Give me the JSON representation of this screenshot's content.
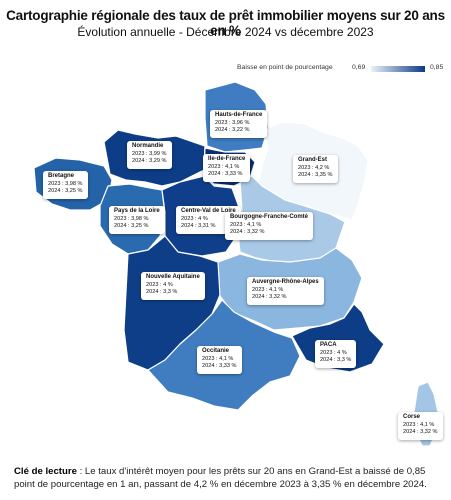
{
  "title": "Cartographie régionale des taux de prêt immobilier moyens sur 20 ans en %",
  "subtitle": "Évolution annuelle - Décembre 2024 vs décembre 2023",
  "legend": {
    "label": "Baisse en point de pourcentage",
    "min": "0,69",
    "max": "0,85",
    "color_low": "#e9f1fa",
    "color_high": "#0b3b85"
  },
  "regions": [
    {
      "id": "hauts-de-france",
      "name": "Hauts-de-France",
      "line2023": "2023 : 3,96 %",
      "line2024": "2024 : 3,22 %",
      "color": "#3f7cc2"
    },
    {
      "id": "normandie",
      "name": "Normandie",
      "line2023": "2023 : 3,99 %",
      "line2024": "2024 : 3,29 %",
      "color": "#0d3d86"
    },
    {
      "id": "ile-de-france",
      "name": "Ile-de-France",
      "line2023": "2023 : 4,1 %",
      "line2024": "2024 : 3,33 %",
      "color": "#0b2f70"
    },
    {
      "id": "grand-est",
      "name": "Grand-Est",
      "line2023": "2023 : 4,2 %",
      "line2024": "2024 : 3,35 %",
      "color": "#f2f7fc"
    },
    {
      "id": "bretagne",
      "name": "Bretagne",
      "line2023": "2023 : 3,98 %",
      "line2024": "2024 : 3,25 %",
      "color": "#2463a8"
    },
    {
      "id": "pays-de-la-loire",
      "name": "Pays de la Loire",
      "line2023": "2023 : 3,98 %",
      "line2024": "2024 : 3,25 %",
      "color": "#2a6bb0"
    },
    {
      "id": "centre-val-de-loire",
      "name": "Centre-Val de Loire",
      "line2023": "2023 : 4 %",
      "line2024": "2024 : 3,31 %",
      "color": "#0f3f8a"
    },
    {
      "id": "bourgogne-franche-comte",
      "name": "Bourgogne-Franche-Comté",
      "line2023": "2023 : 4,1 %",
      "line2024": "2024 : 3,32 %",
      "color": "#a9c9e6"
    },
    {
      "id": "nouvelle-aquitaine",
      "name": "Nouvelle Aquitaine",
      "line2023": "2023 : 4 %",
      "line2024": "2024 : 3,3 %",
      "color": "#0e3e87"
    },
    {
      "id": "auvergne-rhone-alpes",
      "name": "Auvergne-Rhône-Alpes",
      "line2023": "2023 : 4,1 %",
      "line2024": "2024 : 3,32 %",
      "color": "#8ab6df"
    },
    {
      "id": "occitanie",
      "name": "Occitanie",
      "line2023": "2023 : 4,1 %",
      "line2024": "2024 : 3,33 %",
      "color": "#3f7dc0"
    },
    {
      "id": "paca",
      "name": "PACA",
      "line2023": "2023 : 4 %",
      "line2024": "2024 : 3,3 %",
      "color": "#0d3d86"
    },
    {
      "id": "corse",
      "name": "Corse",
      "line2023": "2023 : 4,1 %",
      "line2024": "2024 : 3,32 %",
      "color": "#a4c6e6"
    }
  ],
  "footer": {
    "key_label": "Clé de lecture",
    "text": " : Le taux d'intérêt moyen pour les prêts sur 20 ans en Grand-Est a baissé de 0,85 point de pourcentage en 1 an, passant de 4,2 % en décembre 2023 à 3,35 % en décembre 2024."
  }
}
